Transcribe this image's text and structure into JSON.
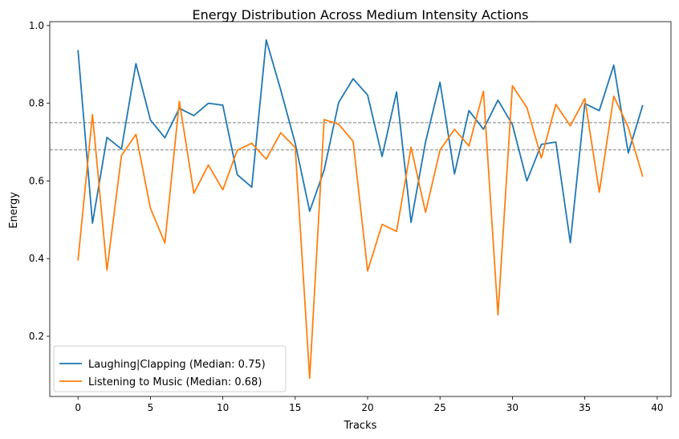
{
  "chart_data": {
    "type": "line",
    "title": "Energy Distribution Across Medium Intensity Actions",
    "xlabel": "Tracks",
    "ylabel": "Energy",
    "xlim": [
      -1.95,
      40.95
    ],
    "ylim": [
      0.045,
      1.01
    ],
    "xticks": [
      0,
      5,
      10,
      15,
      20,
      25,
      30,
      35,
      40
    ],
    "yticks": [
      0.2,
      0.4,
      0.6,
      0.8,
      1.0
    ],
    "xtick_labels": [
      "0",
      "5",
      "10",
      "15",
      "20",
      "25",
      "30",
      "35",
      "40"
    ],
    "ytick_labels": [
      "0.2",
      "0.4",
      "0.6",
      "0.8",
      "1.0"
    ],
    "grid": false,
    "legend_position": "lower-left",
    "x": [
      0,
      1,
      2,
      3,
      4,
      5,
      6,
      7,
      8,
      9,
      10,
      11,
      12,
      13,
      14,
      15,
      16,
      17,
      18,
      19,
      20,
      21,
      22,
      23,
      24,
      25,
      26,
      27,
      28,
      29,
      30,
      31,
      32,
      33,
      34,
      35,
      36,
      37,
      38,
      39
    ],
    "series": [
      {
        "name": "Laughing|Clapping (Median: 0.75)",
        "color": "#1f77b4",
        "values": [
          0.937,
          0.491,
          0.712,
          0.682,
          0.902,
          0.757,
          0.711,
          0.787,
          0.768,
          0.8,
          0.795,
          0.616,
          0.584,
          0.963,
          0.834,
          0.697,
          0.522,
          0.628,
          0.802,
          0.863,
          0.821,
          0.663,
          0.829,
          0.493,
          0.7,
          0.854,
          0.618,
          0.781,
          0.733,
          0.808,
          0.745,
          0.6,
          0.694,
          0.7,
          0.441,
          0.799,
          0.781,
          0.898,
          0.672,
          0.795
        ]
      },
      {
        "name": "Listening to Music (Median: 0.68)",
        "color": "#ff7f0e",
        "values": [
          0.395,
          0.771,
          0.37,
          0.665,
          0.72,
          0.53,
          0.44,
          0.805,
          0.568,
          0.641,
          0.577,
          0.679,
          0.697,
          0.656,
          0.724,
          0.686,
          0.092,
          0.758,
          0.746,
          0.702,
          0.368,
          0.488,
          0.47,
          0.687,
          0.519,
          0.679,
          0.733,
          0.69,
          0.831,
          0.255,
          0.845,
          0.789,
          0.659,
          0.797,
          0.742,
          0.812,
          0.571,
          0.818,
          0.738,
          0.611
        ]
      }
    ],
    "reference_lines": [
      {
        "y": 0.75,
        "color": "#808080",
        "style": "dashed"
      },
      {
        "y": 0.68,
        "color": "#808080",
        "style": "dashed"
      }
    ]
  }
}
